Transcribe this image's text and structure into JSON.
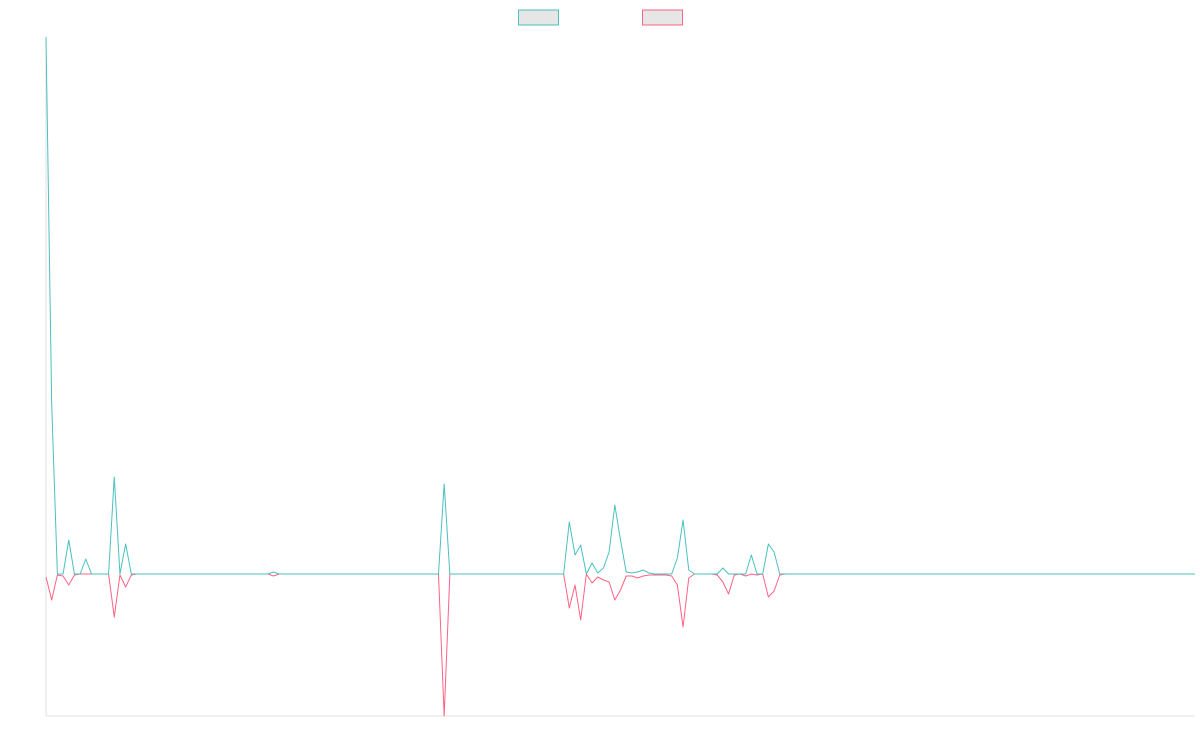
{
  "chart_data": {
    "type": "line",
    "ylim": [
      -142,
      537
    ],
    "legend": "top",
    "series": [
      {
        "color": "#4bc0c0",
        "values": [
          537,
          170,
          0,
          0,
          34,
          0,
          0,
          15,
          0,
          0,
          0,
          0,
          97,
          0,
          30,
          0,
          0,
          0,
          0,
          0,
          0,
          0,
          0,
          0,
          0,
          0,
          0,
          0,
          0,
          0,
          0,
          0,
          0,
          0,
          0,
          0,
          0,
          0,
          0,
          0,
          2,
          0,
          0,
          0,
          0,
          0,
          0,
          0,
          0,
          0,
          0,
          0,
          0,
          0,
          0,
          0,
          0,
          0,
          0,
          0,
          0,
          0,
          0,
          0,
          0,
          0,
          0,
          0,
          0,
          0,
          90,
          0,
          0,
          0,
          0,
          0,
          0,
          0,
          0,
          0,
          0,
          0,
          0,
          0,
          0,
          0,
          0,
          0,
          0,
          0,
          0,
          0,
          52,
          19,
          29,
          0,
          11,
          1,
          6,
          22,
          69,
          34,
          2,
          1,
          2,
          4,
          1,
          0,
          0,
          0,
          0,
          16,
          54,
          4,
          0,
          0,
          0,
          0,
          0,
          6,
          0,
          0,
          0,
          0,
          19,
          0,
          0,
          30,
          22,
          0,
          0,
          0,
          0,
          0,
          0,
          0,
          0,
          0,
          0,
          0,
          0,
          0,
          0,
          0,
          0,
          0,
          0,
          0,
          0,
          0,
          0,
          0,
          0,
          0,
          0,
          0,
          0,
          0,
          0,
          0,
          0,
          0,
          0,
          0,
          0,
          0,
          0,
          0,
          0,
          0,
          0,
          0,
          0,
          0,
          0,
          0,
          0,
          0,
          0,
          0,
          0,
          0,
          0,
          0,
          0,
          0,
          0,
          0,
          0,
          0,
          0,
          0,
          0,
          0,
          0,
          0,
          0,
          0,
          0,
          0,
          0,
          0,
          0
        ]
      },
      {
        "color": "#ff6384",
        "values": [
          -3,
          -26,
          -1,
          -2,
          -11,
          -1,
          0,
          0,
          0,
          0,
          0,
          0,
          -43,
          -1,
          -13,
          -1,
          0,
          0,
          0,
          0,
          0,
          0,
          0,
          0,
          0,
          0,
          0,
          0,
          0,
          0,
          0,
          0,
          0,
          0,
          0,
          0,
          0,
          0,
          0,
          0,
          -2,
          0,
          0,
          0,
          0,
          0,
          0,
          0,
          0,
          0,
          0,
          0,
          0,
          0,
          0,
          0,
          0,
          0,
          0,
          0,
          0,
          0,
          0,
          0,
          0,
          0,
          0,
          0,
          0,
          0,
          -142,
          0,
          0,
          0,
          0,
          0,
          0,
          0,
          0,
          0,
          0,
          0,
          0,
          0,
          0,
          0,
          0,
          0,
          0,
          0,
          0,
          0,
          -34,
          -11,
          -46,
          0,
          -9,
          -3,
          -6,
          -8,
          -26,
          -16,
          -2,
          -2,
          -4,
          -2,
          -1,
          -1,
          -1,
          -1,
          -2,
          -11,
          -53,
          -4,
          0,
          0,
          0,
          0,
          -1,
          -8,
          -20,
          -1,
          0,
          -2,
          0,
          -1,
          0,
          -23,
          -17,
          -1,
          0,
          0,
          0,
          0,
          0,
          0,
          0,
          0,
          0,
          0,
          0,
          0,
          0,
          0,
          0,
          0,
          0,
          0,
          0,
          0,
          0,
          0,
          0,
          0,
          0,
          0,
          0,
          0,
          0,
          0,
          0,
          0,
          0,
          0,
          0,
          0,
          0,
          0,
          0,
          0,
          0,
          0,
          0,
          0,
          0,
          0,
          0,
          0,
          0,
          0,
          0,
          0,
          0,
          0,
          0,
          0,
          0,
          0,
          0,
          0,
          0,
          0,
          0,
          0,
          0,
          0,
          0,
          0,
          0,
          0,
          0,
          0,
          0
        ]
      }
    ]
  }
}
